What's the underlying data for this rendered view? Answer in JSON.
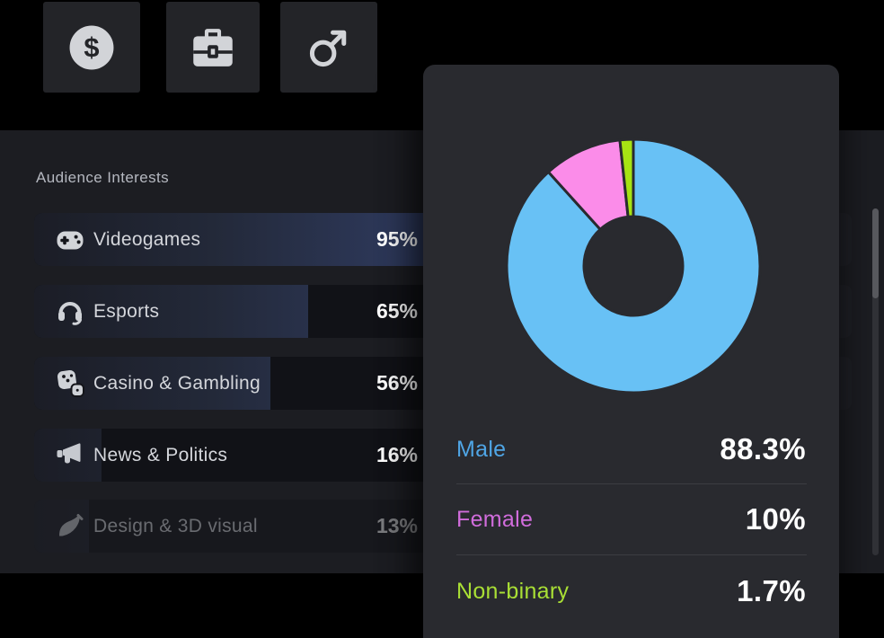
{
  "toolbar": {
    "tiles": [
      {
        "icon": "dollar-icon"
      },
      {
        "icon": "briefcase-icon"
      },
      {
        "icon": "male-symbol-icon"
      }
    ]
  },
  "interests": {
    "title": "Audience Interests",
    "items": [
      {
        "icon": "gamepad-icon",
        "label": "Videogames",
        "value": "95%",
        "pct": 95,
        "faded": false
      },
      {
        "icon": "headset-icon",
        "label": "Esports",
        "value": "65%",
        "pct": 65,
        "faded": false
      },
      {
        "icon": "dice-icon",
        "label": "Casino & Gambling",
        "value": "56%",
        "pct": 56,
        "faded": false
      },
      {
        "icon": "megaphone-icon",
        "label": "News & Politics",
        "value": "16%",
        "pct": 16,
        "faded": false
      },
      {
        "icon": "paintbrush-icon",
        "label": "Design & 3D visual",
        "value": "13%",
        "pct": 13,
        "faded": true
      }
    ],
    "bar_fill_gradient": [
      "#1b1d26",
      "#2f3b60"
    ]
  },
  "gender_card": {
    "legend": [
      {
        "label": "Male",
        "value": "88.3%",
        "label_color": "#4fa5e5",
        "slice_color": "#68c1f5"
      },
      {
        "label": "Female",
        "value": "10%",
        "label_color": "#d06cdb",
        "slice_color": "#fb8ce9"
      },
      {
        "label": "Non-binary",
        "value": "1.7%",
        "label_color": "#a9df35",
        "slice_color": "#a7e313"
      }
    ]
  },
  "chart_data": {
    "type": "pie",
    "donut": true,
    "categories": [
      "Male",
      "Female",
      "Non-binary"
    ],
    "values": [
      88.3,
      10,
      1.7
    ],
    "colors": [
      "#68c1f5",
      "#fb8ce9",
      "#a7e313"
    ],
    "start_angle_deg": 0,
    "direction": "clockwise",
    "inner_radius_ratio": 0.39,
    "gap_color": "#292a2f",
    "legend_position": "below"
  }
}
